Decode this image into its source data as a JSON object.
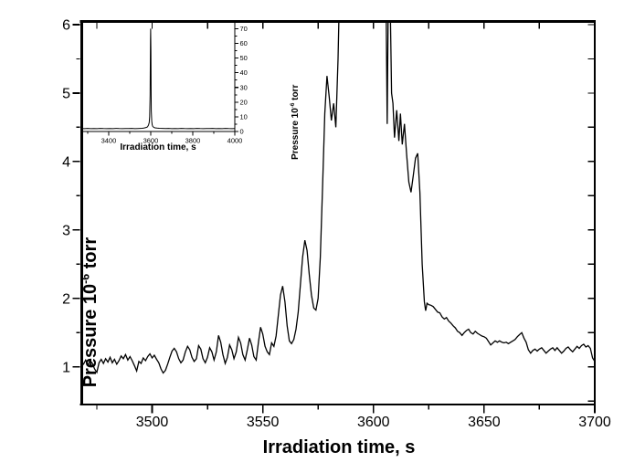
{
  "figure": {
    "background": "#ffffff",
    "line_color": "#000000",
    "text_color": "#000000",
    "description": "Pressure vs irradiation time plot with zoomed-out inset"
  },
  "chart_data": [
    {
      "id": "main",
      "type": "line",
      "title": "",
      "xlabel": "Irradiation time, s",
      "ylabel": "Pressure 10⁻⁶ torr",
      "ylabel_parts": {
        "pre": "Pressure 10",
        "sup": "-6",
        "post": " torr"
      },
      "xlim": [
        3468,
        3700
      ],
      "ylim": [
        0.45,
        6.04
      ],
      "x_major_ticks": [
        3500,
        3550,
        3600,
        3650,
        3700
      ],
      "x_minor_ticks": [
        3475,
        3525,
        3575,
        3625,
        3675
      ],
      "y_major_ticks": [
        1,
        2,
        3,
        4,
        5,
        6
      ],
      "y_minor_ticks": [
        1.5,
        2.5,
        3.5,
        4.5,
        5.5
      ],
      "grid": false,
      "legend": null,
      "clip_at_ymax": true,
      "points": [
        [
          3468,
          1.07
        ],
        [
          3469,
          1.04
        ],
        [
          3470,
          1.1
        ],
        [
          3471,
          1.03
        ],
        [
          3472,
          1.09
        ],
        [
          3473,
          1.05
        ],
        [
          3474,
          0.97
        ],
        [
          3475,
          0.92
        ],
        [
          3476,
          1.06
        ],
        [
          3477,
          1.11
        ],
        [
          3478,
          1.05
        ],
        [
          3479,
          1.12
        ],
        [
          3480,
          1.07
        ],
        [
          3481,
          1.14
        ],
        [
          3482,
          1.06
        ],
        [
          3483,
          1.11
        ],
        [
          3484,
          1.04
        ],
        [
          3485,
          1.09
        ],
        [
          3486,
          1.16
        ],
        [
          3487,
          1.12
        ],
        [
          3488,
          1.18
        ],
        [
          3489,
          1.1
        ],
        [
          3490,
          1.15
        ],
        [
          3491,
          1.09
        ],
        [
          3492,
          1.02
        ],
        [
          3493,
          0.94
        ],
        [
          3494,
          1.08
        ],
        [
          3495,
          1.05
        ],
        [
          3496,
          1.13
        ],
        [
          3497,
          1.09
        ],
        [
          3498,
          1.15
        ],
        [
          3499,
          1.19
        ],
        [
          3500,
          1.13
        ],
        [
          3501,
          1.17
        ],
        [
          3502,
          1.11
        ],
        [
          3503,
          1.06
        ],
        [
          3504,
          0.97
        ],
        [
          3505,
          0.91
        ],
        [
          3506,
          0.95
        ],
        [
          3507,
          1.04
        ],
        [
          3508,
          1.14
        ],
        [
          3509,
          1.23
        ],
        [
          3510,
          1.27
        ],
        [
          3511,
          1.22
        ],
        [
          3512,
          1.12
        ],
        [
          3513,
          1.06
        ],
        [
          3514,
          1.1
        ],
        [
          3515,
          1.22
        ],
        [
          3516,
          1.3
        ],
        [
          3517,
          1.25
        ],
        [
          3518,
          1.14
        ],
        [
          3519,
          1.08
        ],
        [
          3520,
          1.12
        ],
        [
          3521,
          1.31
        ],
        [
          3522,
          1.26
        ],
        [
          3523,
          1.12
        ],
        [
          3524,
          1.06
        ],
        [
          3525,
          1.14
        ],
        [
          3526,
          1.28
        ],
        [
          3527,
          1.22
        ],
        [
          3528,
          1.1
        ],
        [
          3529,
          1.22
        ],
        [
          3530,
          1.46
        ],
        [
          3531,
          1.36
        ],
        [
          3532,
          1.18
        ],
        [
          3533,
          1.05
        ],
        [
          3534,
          1.14
        ],
        [
          3535,
          1.32
        ],
        [
          3536,
          1.25
        ],
        [
          3537,
          1.12
        ],
        [
          3538,
          1.22
        ],
        [
          3539,
          1.43
        ],
        [
          3540,
          1.35
        ],
        [
          3541,
          1.18
        ],
        [
          3542,
          1.1
        ],
        [
          3543,
          1.25
        ],
        [
          3544,
          1.42
        ],
        [
          3545,
          1.32
        ],
        [
          3546,
          1.15
        ],
        [
          3547,
          1.1
        ],
        [
          3548,
          1.35
        ],
        [
          3549,
          1.58
        ],
        [
          3550,
          1.48
        ],
        [
          3551,
          1.3
        ],
        [
          3552,
          1.22
        ],
        [
          3553,
          1.18
        ],
        [
          3554,
          1.35
        ],
        [
          3555,
          1.3
        ],
        [
          3556,
          1.45
        ],
        [
          3557,
          1.75
        ],
        [
          3558,
          2.05
        ],
        [
          3559,
          2.18
        ],
        [
          3560,
          1.95
        ],
        [
          3561,
          1.6
        ],
        [
          3562,
          1.38
        ],
        [
          3563,
          1.34
        ],
        [
          3564,
          1.4
        ],
        [
          3565,
          1.55
        ],
        [
          3566,
          1.8
        ],
        [
          3567,
          2.2
        ],
        [
          3568,
          2.6
        ],
        [
          3569,
          2.85
        ],
        [
          3570,
          2.7
        ],
        [
          3571,
          2.35
        ],
        [
          3572,
          2.05
        ],
        [
          3573,
          1.86
        ],
        [
          3574,
          1.83
        ],
        [
          3575,
          2.0
        ],
        [
          3576,
          2.6
        ],
        [
          3577,
          3.6
        ],
        [
          3578,
          4.7
        ],
        [
          3579,
          5.25
        ],
        [
          3580,
          4.95
        ],
        [
          3581,
          4.6
        ],
        [
          3582,
          4.85
        ],
        [
          3583,
          4.5
        ],
        [
          3584,
          5.5
        ],
        [
          3585,
          7.0
        ],
        [
          3587,
          20
        ],
        [
          3590,
          45
        ],
        [
          3594,
          65
        ],
        [
          3597,
          70
        ],
        [
          3600,
          68
        ],
        [
          3602,
          50
        ],
        [
          3604,
          20
        ],
        [
          3605,
          8
        ],
        [
          3605.7,
          6.3
        ],
        [
          3606.2,
          4.55
        ],
        [
          3606.7,
          6.4
        ],
        [
          3607.5,
          6.5
        ],
        [
          3608.2,
          5.0
        ],
        [
          3608.8,
          4.85
        ],
        [
          3609.5,
          4.35
        ],
        [
          3610.5,
          4.75
        ],
        [
          3611.5,
          4.3
        ],
        [
          3612.2,
          4.7
        ],
        [
          3613,
          4.25
        ],
        [
          3614,
          4.55
        ],
        [
          3615,
          4.1
        ],
        [
          3616,
          3.7
        ],
        [
          3617,
          3.55
        ],
        [
          3618,
          3.8
        ],
        [
          3619,
          4.05
        ],
        [
          3620,
          4.12
        ],
        [
          3621,
          3.55
        ],
        [
          3622,
          2.5
        ],
        [
          3623,
          1.95
        ],
        [
          3623.6,
          1.82
        ],
        [
          3624.2,
          1.93
        ],
        [
          3625,
          1.91
        ],
        [
          3626,
          1.9
        ],
        [
          3627,
          1.88
        ],
        [
          3628,
          1.84
        ],
        [
          3629,
          1.8
        ],
        [
          3630,
          1.79
        ],
        [
          3631,
          1.73
        ],
        [
          3632,
          1.7
        ],
        [
          3633,
          1.72
        ],
        [
          3634,
          1.67
        ],
        [
          3635,
          1.64
        ],
        [
          3636,
          1.6
        ],
        [
          3637,
          1.57
        ],
        [
          3638,
          1.52
        ],
        [
          3639,
          1.5
        ],
        [
          3640,
          1.46
        ],
        [
          3641,
          1.5
        ],
        [
          3642,
          1.53
        ],
        [
          3643,
          1.55
        ],
        [
          3644,
          1.5
        ],
        [
          3645,
          1.48
        ],
        [
          3646,
          1.52
        ],
        [
          3647,
          1.49
        ],
        [
          3648,
          1.47
        ],
        [
          3649,
          1.45
        ],
        [
          3650,
          1.44
        ],
        [
          3651,
          1.42
        ],
        [
          3652,
          1.37
        ],
        [
          3653,
          1.32
        ],
        [
          3654,
          1.35
        ],
        [
          3655,
          1.38
        ],
        [
          3656,
          1.36
        ],
        [
          3657,
          1.38
        ],
        [
          3658,
          1.36
        ],
        [
          3659,
          1.35
        ],
        [
          3660,
          1.36
        ],
        [
          3661,
          1.34
        ],
        [
          3662,
          1.36
        ],
        [
          3663,
          1.38
        ],
        [
          3664,
          1.4
        ],
        [
          3665,
          1.44
        ],
        [
          3666,
          1.47
        ],
        [
          3667,
          1.5
        ],
        [
          3668,
          1.42
        ],
        [
          3669,
          1.36
        ],
        [
          3670,
          1.25
        ],
        [
          3671,
          1.2
        ],
        [
          3672,
          1.24
        ],
        [
          3673,
          1.26
        ],
        [
          3674,
          1.23
        ],
        [
          3675,
          1.26
        ],
        [
          3676,
          1.28
        ],
        [
          3677,
          1.24
        ],
        [
          3678,
          1.2
        ],
        [
          3679,
          1.23
        ],
        [
          3680,
          1.26
        ],
        [
          3681,
          1.28
        ],
        [
          3682,
          1.24
        ],
        [
          3683,
          1.28
        ],
        [
          3684,
          1.24
        ],
        [
          3685,
          1.2
        ],
        [
          3686,
          1.23
        ],
        [
          3687,
          1.27
        ],
        [
          3688,
          1.29
        ],
        [
          3689,
          1.25
        ],
        [
          3690,
          1.22
        ],
        [
          3691,
          1.26
        ],
        [
          3692,
          1.3
        ],
        [
          3693,
          1.27
        ],
        [
          3694,
          1.31
        ],
        [
          3695,
          1.33
        ],
        [
          3696,
          1.29
        ],
        [
          3697,
          1.31
        ],
        [
          3698,
          1.27
        ],
        [
          3699,
          1.13
        ],
        [
          3700,
          1.08
        ]
      ]
    },
    {
      "id": "inset",
      "type": "line",
      "title": "",
      "xlabel": "Irradiation time, s",
      "ylabel": "Pressure 10⁻⁶ torr",
      "ylabel_parts": {
        "pre": "Pressure 10",
        "sup": "-6",
        "post": " torr"
      },
      "xlim": [
        3270,
        4000
      ],
      "ylim": [
        0,
        75.5
      ],
      "x_major_ticks": [
        3400,
        3600,
        3800,
        4000
      ],
      "x_minor_ticks": [
        3300,
        3500,
        3700,
        3900
      ],
      "y_major_ticks": [
        0,
        10,
        20,
        30,
        40,
        50,
        60,
        70
      ],
      "y_minor_ticks": [
        5,
        15,
        25,
        35,
        45,
        55,
        65
      ],
      "grid": false,
      "legend": null,
      "points": [
        [
          3270,
          2.0
        ],
        [
          3285,
          1.9
        ],
        [
          3300,
          2.1
        ],
        [
          3315,
          1.95
        ],
        [
          3330,
          2.05
        ],
        [
          3345,
          1.9
        ],
        [
          3360,
          2.1
        ],
        [
          3375,
          2.0
        ],
        [
          3390,
          1.9
        ],
        [
          3405,
          2.05
        ],
        [
          3420,
          1.95
        ],
        [
          3435,
          2.1
        ],
        [
          3450,
          2.0
        ],
        [
          3465,
          1.9
        ],
        [
          3480,
          2.05
        ],
        [
          3495,
          2.0
        ],
        [
          3510,
          2.1
        ],
        [
          3525,
          1.95
        ],
        [
          3540,
          2.05
        ],
        [
          3550,
          2.1
        ],
        [
          3560,
          2.2
        ],
        [
          3570,
          2.4
        ],
        [
          3580,
          2.8
        ],
        [
          3585,
          3.2
        ],
        [
          3590,
          4.5
        ],
        [
          3593,
          6
        ],
        [
          3595,
          10
        ],
        [
          3597,
          25
        ],
        [
          3598,
          45
        ],
        [
          3599,
          62
        ],
        [
          3600,
          70
        ],
        [
          3601,
          55
        ],
        [
          3602,
          30
        ],
        [
          3603,
          14
        ],
        [
          3605,
          7
        ],
        [
          3607,
          4.5
        ],
        [
          3610,
          3.4
        ],
        [
          3615,
          2.8
        ],
        [
          3620,
          2.5
        ],
        [
          3630,
          2.3
        ],
        [
          3640,
          2.2
        ],
        [
          3655,
          2.1
        ],
        [
          3670,
          2.0
        ],
        [
          3685,
          2.1
        ],
        [
          3700,
          1.95
        ],
        [
          3715,
          2.05
        ],
        [
          3730,
          1.95
        ],
        [
          3745,
          2.1
        ],
        [
          3760,
          2.0
        ],
        [
          3775,
          1.9
        ],
        [
          3790,
          2.05
        ],
        [
          3805,
          1.95
        ],
        [
          3820,
          2.1
        ],
        [
          3835,
          2.0
        ],
        [
          3850,
          1.9
        ],
        [
          3865,
          2.05
        ],
        [
          3880,
          2.0
        ],
        [
          3895,
          2.1
        ],
        [
          3910,
          1.95
        ],
        [
          3925,
          2.05
        ],
        [
          3940,
          1.9
        ],
        [
          3955,
          2.1
        ],
        [
          3970,
          2.0
        ],
        [
          3985,
          1.95
        ],
        [
          4000,
          2.05
        ]
      ]
    }
  ]
}
